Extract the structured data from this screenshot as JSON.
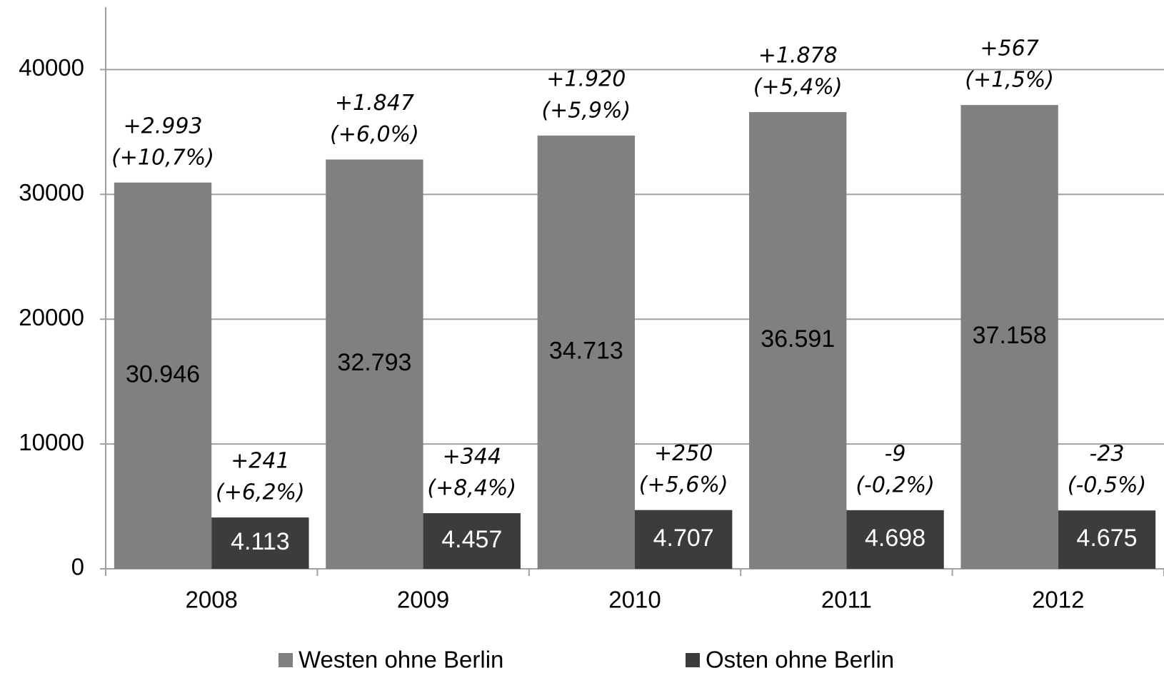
{
  "chart_data": {
    "type": "bar",
    "categories": [
      "2008",
      "2009",
      "2010",
      "2011",
      "2012"
    ],
    "series": [
      {
        "name": "Westen ohne Berlin",
        "color": "#808080",
        "label_color": "#000000",
        "values": [
          30946,
          32793,
          34713,
          36591,
          37158
        ],
        "value_labels": [
          "30.946",
          "32.793",
          "34.713",
          "36.591",
          "37.158"
        ],
        "annotations": [
          [
            "+2.993",
            "(+10,7%)"
          ],
          [
            "+1.847",
            "(+6,0%)"
          ],
          [
            "+1.920",
            "(+5,9%)"
          ],
          [
            "+1.878",
            "(+5,4%)"
          ],
          [
            "+567",
            "(+1,5%)"
          ]
        ]
      },
      {
        "name": "Osten ohne Berlin",
        "color": "#3c3c3c",
        "label_color": "#ffffff",
        "values": [
          4113,
          4457,
          4707,
          4698,
          4675
        ],
        "value_labels": [
          "4.113",
          "4.457",
          "4.707",
          "4.698",
          "4.675"
        ],
        "annotations": [
          [
            "+241",
            "(+6,2%)"
          ],
          [
            "+344",
            "(+8,4%)"
          ],
          [
            "+250",
            "(+5,6%)"
          ],
          [
            "-9",
            "(-0,2%)"
          ],
          [
            "-23",
            "(-0,5%)"
          ]
        ]
      }
    ],
    "ylim": [
      0,
      45000
    ],
    "yticks": [
      0,
      10000,
      20000,
      30000,
      40000
    ],
    "grid": true,
    "legend": "bottom"
  }
}
